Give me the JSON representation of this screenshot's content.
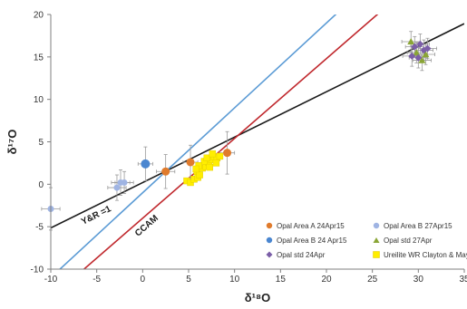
{
  "chart_data": {
    "type": "scatter",
    "xlabel": "δ¹⁸O",
    "ylabel": "δ¹⁷O",
    "xlim": [
      -10,
      35
    ],
    "ylim": [
      -10,
      20
    ],
    "xticks": [
      -10,
      -5,
      0,
      5,
      10,
      15,
      20,
      25,
      30,
      35
    ],
    "yticks": [
      -10,
      -5,
      0,
      5,
      10,
      15,
      20
    ],
    "x_tick_labels": [
      "-10",
      "-5",
      "0",
      "5",
      "10",
      "15",
      "20",
      "25",
      "30",
      "35"
    ],
    "y_tick_labels": [
      "-10",
      "-5",
      "0",
      "5",
      "10",
      "15",
      "20"
    ],
    "grid": false,
    "legend_position": "bottom-right",
    "lines": [
      {
        "label": "Y&R =1",
        "color": "#1a1a1a",
        "slope": 0.535,
        "intercept": 0.2
      },
      {
        "label": "",
        "color": "#5b9bd5",
        "slope": 1.0,
        "intercept": -1.0
      },
      {
        "label": "CCAM",
        "color": "#c0282d",
        "slope": 0.94,
        "intercept": -4.0
      }
    ],
    "series": [
      {
        "name": "Opal Area A 24Apr15",
        "marker": "circle",
        "color": "#e07b2c",
        "size": 4.5,
        "points": [
          [
            2.5,
            1.5
          ],
          [
            5.2,
            2.6
          ],
          [
            9.2,
            3.7
          ]
        ],
        "err": [
          [
            1.0,
            2.0
          ],
          [
            0.8,
            2.0
          ],
          [
            0.8,
            2.5
          ]
        ]
      },
      {
        "name": "Opal Area B 27Apr15",
        "marker": "circle",
        "color": "#9fb4e3",
        "size": 3.5,
        "points": [
          [
            -10.0,
            -2.9
          ],
          [
            -2.8,
            -0.4
          ],
          [
            -2.4,
            0.2
          ],
          [
            -2.0,
            0.2
          ]
        ],
        "err": [
          [
            1.0,
            2.5
          ],
          [
            1.0,
            1.5
          ],
          [
            1.0,
            1.5
          ],
          [
            1.0,
            1.3
          ]
        ]
      },
      {
        "name": "Opal Area B 24 Apr15",
        "marker": "circle",
        "color": "#4a86d0",
        "size": 5,
        "points": [
          [
            0.3,
            2.4
          ]
        ],
        "err": [
          [
            0.8,
            2.0
          ]
        ]
      },
      {
        "name": "Opal std 27Apr",
        "marker": "triangle",
        "color": "#8aa536",
        "size": 4,
        "points": [
          [
            29.2,
            16.8
          ],
          [
            29.8,
            15.5
          ],
          [
            30.4,
            14.6
          ],
          [
            30.8,
            15.3
          ]
        ],
        "err": [
          [
            1.0,
            1.2
          ],
          [
            1.0,
            1.2
          ],
          [
            1.0,
            1.2
          ],
          [
            1.0,
            1.2
          ]
        ]
      },
      {
        "name": "Opal std 24Apr",
        "marker": "diamond",
        "color": "#7b5ea7",
        "size": 4,
        "points": [
          [
            29.6,
            16.2
          ],
          [
            30.2,
            16.5
          ],
          [
            30.6,
            15.8
          ],
          [
            29.3,
            15.1
          ],
          [
            30.0,
            14.9
          ],
          [
            31.0,
            16.0
          ]
        ],
        "err": [
          [
            1.0,
            1.2
          ],
          [
            1.0,
            1.2
          ],
          [
            1.0,
            1.2
          ],
          [
            1.0,
            1.2
          ],
          [
            1.0,
            1.2
          ],
          [
            1.0,
            1.2
          ]
        ]
      },
      {
        "name": "Ureilite WR Clayton & Mayeda",
        "marker": "square",
        "color": "#ffee00",
        "size": 3.5,
        "points": [
          [
            4.8,
            0.4
          ],
          [
            5.2,
            0.2
          ],
          [
            5.6,
            0.6
          ],
          [
            6.0,
            0.8
          ],
          [
            5.9,
            1.5
          ],
          [
            6.2,
            1.1
          ],
          [
            6.5,
            1.9
          ],
          [
            6.9,
            2.1
          ],
          [
            7.2,
            2.6
          ],
          [
            7.5,
            2.9
          ],
          [
            7.8,
            3.2
          ],
          [
            8.1,
            3.1
          ],
          [
            8.4,
            3.3
          ],
          [
            6.7,
            2.7
          ],
          [
            7.0,
            3.1
          ],
          [
            7.6,
            3.6
          ],
          [
            8.0,
            2.5
          ],
          [
            6.1,
            2.2
          ],
          [
            5.8,
            1.8
          ],
          [
            7.3,
            2.0
          ]
        ],
        "err": []
      }
    ]
  }
}
